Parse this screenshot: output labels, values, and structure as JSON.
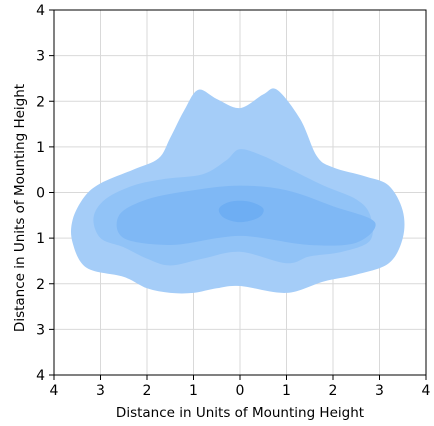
{
  "chart_data": {
    "type": "contour",
    "xlabel": "Distance in Units of Mounting Height",
    "ylabel": "Distance in Units of Mounting Height",
    "xlim": [
      -4,
      4
    ],
    "ylim": [
      -4,
      4
    ],
    "x_ticks": [
      -4,
      -3,
      -2,
      -1,
      0,
      1,
      2,
      3,
      4
    ],
    "y_ticks": [
      -4,
      -3,
      -2,
      -1,
      0,
      1,
      2,
      3,
      4
    ],
    "x_tick_labels": [
      "4",
      "3",
      "2",
      "1",
      "0",
      "1",
      "2",
      "3",
      "4"
    ],
    "y_tick_labels": [
      "4",
      "3",
      "2",
      "1",
      "0",
      "1",
      "2",
      "3",
      "4"
    ],
    "grid": true,
    "levels": [
      {
        "name": "outer",
        "color": "#a5cdf8",
        "points": [
          [
            -0.9,
            2.25
          ],
          [
            -0.5,
            2.05
          ],
          [
            0,
            1.85
          ],
          [
            0.5,
            2.15
          ],
          [
            0.8,
            2.25
          ],
          [
            1.3,
            1.6
          ],
          [
            1.65,
            0.8
          ],
          [
            2.0,
            0.55
          ],
          [
            2.7,
            0.35
          ],
          [
            3.2,
            0.15
          ],
          [
            3.5,
            -0.4
          ],
          [
            3.5,
            -1.0
          ],
          [
            3.2,
            -1.55
          ],
          [
            2.5,
            -1.8
          ],
          [
            1.8,
            -1.95
          ],
          [
            1.0,
            -2.2
          ],
          [
            0,
            -2.05
          ],
          [
            -0.5,
            -2.1
          ],
          [
            -1.0,
            -2.2
          ],
          [
            -1.5,
            -2.2
          ],
          [
            -2.0,
            -2.1
          ],
          [
            -2.5,
            -1.85
          ],
          [
            -3.3,
            -1.65
          ],
          [
            -3.6,
            -1.1
          ],
          [
            -3.6,
            -0.6
          ],
          [
            -3.35,
            -0.1
          ],
          [
            -3.0,
            0.2
          ],
          [
            -2.3,
            0.5
          ],
          [
            -1.75,
            0.75
          ],
          [
            -1.5,
            1.2
          ],
          [
            -1.2,
            1.8
          ]
        ]
      },
      {
        "name": "mid",
        "color": "#91c3f7",
        "points": [
          [
            -0.8,
            0.4
          ],
          [
            -0.3,
            0.7
          ],
          [
            0,
            0.95
          ],
          [
            0.5,
            0.8
          ],
          [
            1.0,
            0.55
          ],
          [
            1.8,
            0.15
          ],
          [
            2.5,
            -0.15
          ],
          [
            2.8,
            -0.5
          ],
          [
            2.8,
            -1.05
          ],
          [
            2.2,
            -1.3
          ],
          [
            1.5,
            -1.4
          ],
          [
            1.0,
            -1.55
          ],
          [
            0,
            -1.3
          ],
          [
            -0.8,
            -1.45
          ],
          [
            -1.5,
            -1.6
          ],
          [
            -2.0,
            -1.45
          ],
          [
            -2.5,
            -1.2
          ],
          [
            -3.0,
            -1.0
          ],
          [
            -3.15,
            -0.55
          ],
          [
            -2.9,
            -0.15
          ],
          [
            -2.3,
            0.15
          ],
          [
            -1.6,
            0.3
          ]
        ]
      },
      {
        "name": "inner",
        "color": "#7fb8f5",
        "points": [
          [
            -2.6,
            -0.5
          ],
          [
            -2.0,
            -0.15
          ],
          [
            -1.0,
            0.05
          ],
          [
            0,
            0.15
          ],
          [
            1.0,
            0.05
          ],
          [
            2.0,
            -0.3
          ],
          [
            2.9,
            -0.65
          ],
          [
            2.5,
            -1.1
          ],
          [
            1.5,
            -1.15
          ],
          [
            0.5,
            -1.0
          ],
          [
            0,
            -0.95
          ],
          [
            -0.5,
            -1.0
          ],
          [
            -1.5,
            -1.15
          ],
          [
            -2.5,
            -1.0
          ]
        ]
      },
      {
        "name": "core",
        "color": "#6eaef3",
        "points": [
          [
            -0.45,
            -0.35
          ],
          [
            -0.2,
            -0.2
          ],
          [
            0.2,
            -0.2
          ],
          [
            0.5,
            -0.35
          ],
          [
            0.4,
            -0.55
          ],
          [
            0,
            -0.65
          ],
          [
            -0.35,
            -0.55
          ]
        ]
      }
    ]
  }
}
